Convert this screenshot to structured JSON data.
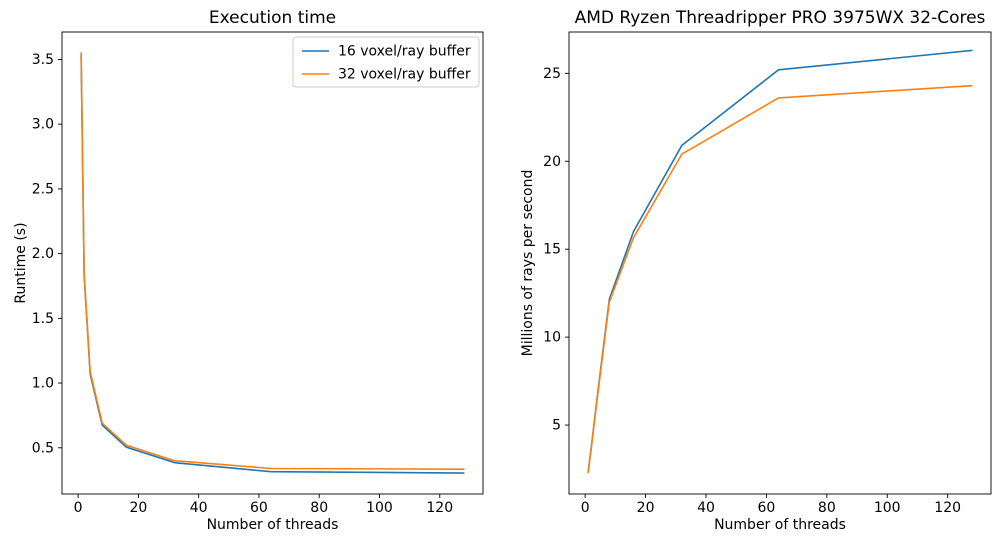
{
  "figure": {
    "background": "#ffffff",
    "text_color": "#000000",
    "spine_color": "#000000"
  },
  "chart_data": [
    {
      "id": "execution-time",
      "type": "line",
      "title": "Execution time",
      "xlabel": "Number of threads",
      "ylabel": "Runtime (s)",
      "x": [
        1,
        2,
        4,
        8,
        16,
        32,
        64,
        128
      ],
      "series": [
        {
          "name": "16 voxel/ray buffer",
          "color": "#1f77b4",
          "values": [
            3.53,
            1.83,
            1.07,
            0.675,
            0.505,
            0.385,
            0.315,
            0.305
          ]
        },
        {
          "name": "32 voxel/ray buffer",
          "color": "#ff7f0e",
          "values": [
            3.55,
            1.85,
            1.09,
            0.69,
            0.52,
            0.4,
            0.34,
            0.335
          ]
        }
      ],
      "xlim": [
        -5.35,
        134.35
      ],
      "ylim": [
        0.143,
        3.712
      ],
      "xticks": {
        "values": [
          0,
          20,
          40,
          60,
          80,
          100,
          120
        ],
        "labels": [
          "0",
          "20",
          "40",
          "60",
          "80",
          "100",
          "120"
        ]
      },
      "yticks": {
        "values": [
          0.5,
          1.0,
          1.5,
          2.0,
          2.5,
          3.0,
          3.5
        ],
        "labels": [
          "0.5",
          "1.0",
          "1.5",
          "2.0",
          "2.5",
          "3.0",
          "3.5"
        ]
      },
      "grid": false,
      "legend": {
        "visible": true,
        "position": "upper right",
        "entries": [
          "16 voxel/ray buffer",
          "32 voxel/ray buffer"
        ],
        "edge_color": "#cccccc",
        "face_color": "#ffffff"
      }
    },
    {
      "id": "rays-per-second",
      "type": "line",
      "title": "AMD Ryzen Threadripper PRO 3975WX 32-Cores",
      "xlabel": "Number of threads",
      "ylabel": "Millions of rays per second",
      "x": [
        1,
        2,
        4,
        8,
        16,
        32,
        64,
        128
      ],
      "series": [
        {
          "name": "16 voxel/ray buffer",
          "color": "#1f77b4",
          "values": [
            2.35,
            3.7,
            6.6,
            12.15,
            16.0,
            20.9,
            25.2,
            26.3
          ]
        },
        {
          "name": "32 voxel/ray buffer",
          "color": "#ff7f0e",
          "values": [
            2.3,
            3.65,
            6.5,
            12.0,
            15.65,
            20.4,
            23.6,
            24.3
          ]
        }
      ],
      "xlim": [
        -5.35,
        134.35
      ],
      "ylim": [
        1.08,
        27.35
      ],
      "xticks": {
        "values": [
          0,
          20,
          40,
          60,
          80,
          100,
          120
        ],
        "labels": [
          "0",
          "20",
          "40",
          "60",
          "80",
          "100",
          "120"
        ]
      },
      "yticks": {
        "values": [
          5,
          10,
          15,
          20,
          25
        ],
        "labels": [
          "5",
          "10",
          "15",
          "20",
          "25"
        ]
      },
      "grid": false,
      "legend": {
        "visible": false
      }
    }
  ]
}
